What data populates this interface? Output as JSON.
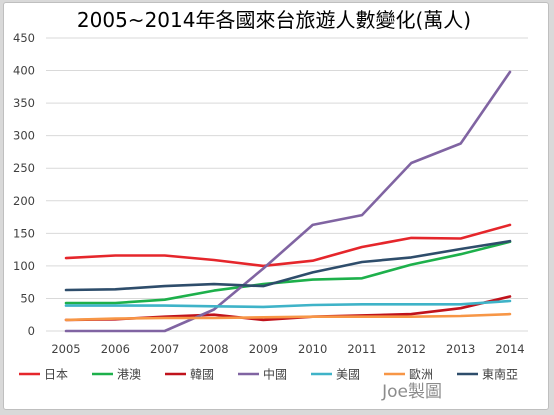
{
  "chart_data": {
    "type": "line",
    "title": "2005~2014年各國來台旅遊人數變化(萬人)",
    "xlabel": "",
    "ylabel": "",
    "x": [
      "2005",
      "2006",
      "2007",
      "2008",
      "2009",
      "2010",
      "2011",
      "2012",
      "2013",
      "2014"
    ],
    "yticks": [
      "0",
      "50",
      "100",
      "150",
      "200",
      "250",
      "300",
      "350",
      "400",
      "450"
    ],
    "ylim": [
      0,
      450
    ],
    "grid": true,
    "legend_position": "bottom",
    "series": [
      {
        "name": "日本",
        "color": "#e5262b",
        "values": [
          112,
          116,
          116,
          109,
          100,
          108,
          129,
          143,
          142,
          163
        ]
      },
      {
        "name": "港澳",
        "color": "#1db04b",
        "values": [
          43,
          43,
          48,
          62,
          72,
          79,
          81,
          102,
          118,
          137
        ]
      },
      {
        "name": "韓國",
        "color": "#c0131c",
        "values": [
          17,
          18,
          22,
          25,
          17,
          22,
          24,
          26,
          35,
          53
        ]
      },
      {
        "name": "中國",
        "color": "#8064a2",
        "values": [
          0,
          0,
          0,
          33,
          96,
          163,
          178,
          258,
          288,
          398
        ]
      },
      {
        "name": "美國",
        "color": "#3fb3c8",
        "values": [
          39,
          39,
          39,
          38,
          37,
          40,
          41,
          41,
          41,
          46
        ]
      },
      {
        "name": "歐洲",
        "color": "#f79646",
        "values": [
          17,
          19,
          20,
          20,
          21,
          22,
          22,
          22,
          23,
          26
        ]
      },
      {
        "name": "東南亞",
        "color": "#2e4d6b",
        "values": [
          63,
          64,
          69,
          72,
          69,
          90,
          106,
          113,
          126,
          138
        ]
      }
    ]
  },
  "watermark": "Joe製圖"
}
